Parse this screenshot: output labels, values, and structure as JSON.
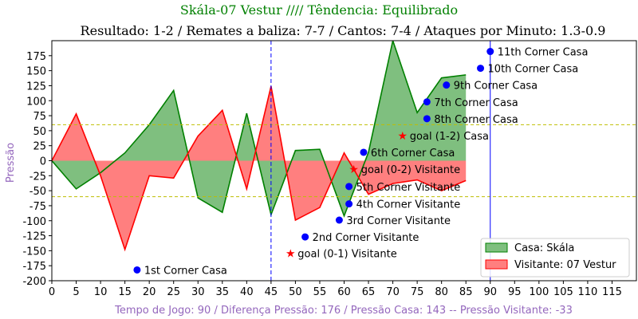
{
  "chart_data": {
    "type": "area",
    "title": "Skála-07 Vestur //// Têndencia: Equilibrado",
    "subtitle": "Resultado: 1-2 / Remates a baliza: 7-7 / Cantos: 7-4 / Ataques por Minuto: 1.3-0.9",
    "xlabel": "Tempo de Jogo: 90 / Diferença Pressão: 176 / Pressão Casa: 143 -- Pressão Visitante: -33",
    "ylabel": "Pressão",
    "xlim": [
      0,
      120
    ],
    "ylim": [
      -200,
      200
    ],
    "xticks": [
      0,
      5,
      10,
      15,
      20,
      25,
      30,
      35,
      40,
      45,
      50,
      55,
      60,
      65,
      70,
      75,
      80,
      85,
      90,
      95,
      100,
      105,
      110,
      115
    ],
    "yticks": [
      -200,
      -175,
      -150,
      -125,
      -100,
      -75,
      -50,
      -25,
      0,
      25,
      50,
      75,
      100,
      125,
      150,
      175
    ],
    "grid": false,
    "legend_position": "bottom-right",
    "colors": {
      "title": "#008000",
      "label": "#9467bd",
      "home": "#008000",
      "away": "#ff0000",
      "home_fill": "#7fbf7f",
      "away_fill": "#ff7f7f",
      "marker": "#0000ff",
      "goal": "#ff0000",
      "hline": "#bfbf00",
      "vline": "#0000ff"
    },
    "series": [
      {
        "name": "Casa: Skála",
        "x": [
          0,
          5,
          10,
          15,
          20,
          25,
          30,
          35,
          40,
          45,
          50,
          55,
          60,
          65,
          70,
          75,
          80,
          85
        ],
        "values": [
          0,
          -47,
          -20,
          13,
          60,
          117,
          -62,
          -86,
          79,
          -90,
          17,
          19,
          -92,
          14,
          200,
          80,
          138,
          143
        ]
      },
      {
        "name": "Visitante: 07 Vestur",
        "x": [
          0,
          5,
          10,
          15,
          20,
          25,
          30,
          35,
          40,
          45,
          50,
          55,
          60,
          65,
          70,
          75,
          80,
          85
        ],
        "values": [
          0,
          78,
          -25,
          -148,
          -25,
          -29,
          41,
          84,
          -47,
          124,
          -99,
          -78,
          13,
          -56,
          -38,
          -32,
          -50,
          -33
        ]
      }
    ],
    "hlines": [
      60,
      -60
    ],
    "vlines": [
      45,
      90
    ],
    "events": [
      {
        "type": "corner",
        "x": 17.5,
        "y": -182,
        "label": "1st Corner Casa"
      },
      {
        "type": "corner",
        "x": 52,
        "y": -127,
        "label": "2nd Corner Visitante"
      },
      {
        "type": "corner",
        "x": 59,
        "y": -99,
        "label": "3rd Corner Visitante"
      },
      {
        "type": "corner",
        "x": 61,
        "y": -72,
        "label": "4th Corner Visitante"
      },
      {
        "type": "corner",
        "x": 61,
        "y": -43,
        "label": "5th Corner Visitante"
      },
      {
        "type": "corner",
        "x": 64,
        "y": 14,
        "label": "6th Corner Casa"
      },
      {
        "type": "corner",
        "x": 77,
        "y": 98,
        "label": "7th Corner Casa"
      },
      {
        "type": "corner",
        "x": 77,
        "y": 70,
        "label": "8th Corner Casa"
      },
      {
        "type": "corner",
        "x": 81,
        "y": 126,
        "label": "9th Corner Casa"
      },
      {
        "type": "corner",
        "x": 88,
        "y": 154,
        "label": "10th Corner Casa"
      },
      {
        "type": "corner",
        "x": 90,
        "y": 182,
        "label": "11th Corner Casa"
      },
      {
        "type": "goal",
        "x": 49,
        "y": -154,
        "label": "goal (0-1) Visitante"
      },
      {
        "type": "goal",
        "x": 62,
        "y": -14,
        "label": "goal (0-2) Visitante"
      },
      {
        "type": "goal",
        "x": 72,
        "y": 42,
        "label": "goal (1-2) Casa"
      }
    ]
  }
}
